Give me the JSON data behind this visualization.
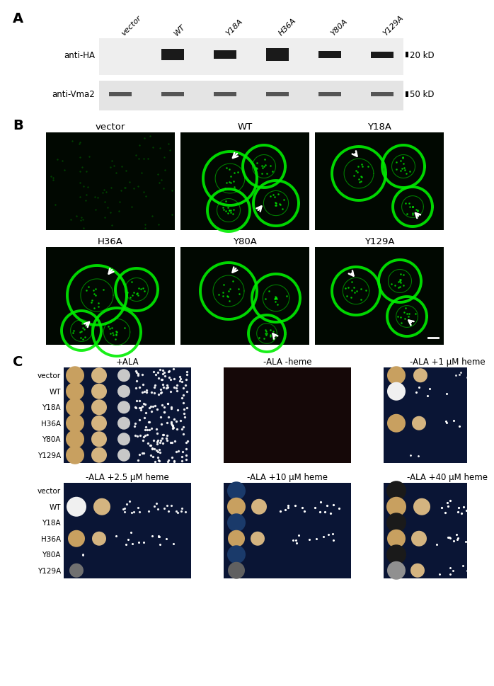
{
  "panel_A": {
    "label": "A",
    "lane_labels": [
      "vector",
      "WT",
      "Y18A",
      "H36A",
      "Y80A",
      "Y129A"
    ],
    "anti_HA_label": "anti-HA",
    "anti_Vma2_label": "anti-Vma2",
    "kD_20": "20 kD",
    "kD_50": "50 kD",
    "wb_bg1": "#eeeeee",
    "wb_bg2": "#e4e4e4",
    "band_color_HA": "#1a1a1a",
    "band_color_Vma2": "#555555"
  },
  "panel_B": {
    "label": "B",
    "row1_labels": [
      "vector",
      "WT",
      "Y18A"
    ],
    "row2_labels": [
      "H36A",
      "Y80A",
      "Y129A"
    ],
    "cell_color": "#00ee00",
    "bg_color": "#010801"
  },
  "panel_C": {
    "label": "C",
    "row1_titles": [
      "+ALA",
      "-ALA -heme",
      "-ALA +1 μM heme"
    ],
    "row2_titles": [
      "-ALA +2.5 μM heme",
      "-ALA +10 μM heme",
      "-ALA +40 μM heme"
    ],
    "row_labels": [
      "vector",
      "WT",
      "Y18A",
      "H36A",
      "Y80A",
      "Y129A"
    ],
    "bg_blue": "#0a1535",
    "bg_dark": "#150808",
    "tan": "#c8a060",
    "beige": "#d4b480",
    "white_c": "#f0f0f0",
    "gray_med": "#888888",
    "blue_dark": "#1a3060"
  },
  "figure_bg": "#ffffff",
  "text_color": "#000000",
  "panel_label_fontsize": 14,
  "body_fontsize": 8.5,
  "small_fontsize": 7.5,
  "lane_fontsize": 8
}
